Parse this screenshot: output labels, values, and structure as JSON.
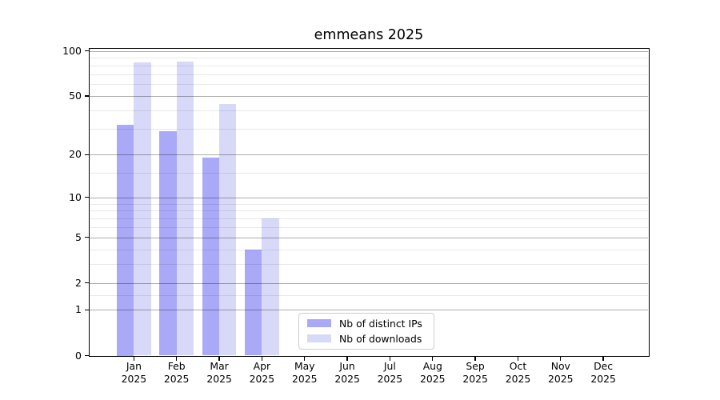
{
  "chart_data": {
    "type": "bar",
    "title": "emmeans 2025",
    "categories": [
      "Jan",
      "Feb",
      "Mar",
      "Apr",
      "May",
      "Jun",
      "Jul",
      "Aug",
      "Sep",
      "Oct",
      "Nov",
      "Dec"
    ],
    "x_year_label": "2025",
    "series": [
      {
        "name": "Nb of distinct IPs",
        "color": "#a9a9f8",
        "values": [
          32,
          29,
          19,
          4,
          0,
          0,
          0,
          0,
          0,
          0,
          0,
          0
        ]
      },
      {
        "name": "Nb of downloads",
        "color": "#d8d8f9",
        "values": [
          84,
          85,
          44,
          7,
          0,
          0,
          0,
          0,
          0,
          0,
          0,
          0
        ]
      }
    ],
    "yscale": "log1p",
    "ylim": [
      0,
      104
    ],
    "y_major_ticks": [
      0,
      1,
      2,
      5,
      10,
      20,
      50,
      100
    ],
    "y_minor_gridlines": [
      1.5,
      3,
      4,
      6,
      7,
      8,
      9,
      15,
      30,
      40,
      60,
      70,
      80,
      90
    ],
    "grid": "horizontal-major-and-minor",
    "legend_position": "lower-center-inside"
  },
  "colors": {
    "background": "#ffffff",
    "bar_distinct_ips": "#a9a9f8",
    "bar_downloads": "#d8d8f9",
    "major_grid": "rgba(0,0,0,0.32)",
    "minor_grid": "rgba(0,0,0,0.085)",
    "spine": "#000000",
    "legend_border": "#cccccc",
    "text": "#000000"
  }
}
